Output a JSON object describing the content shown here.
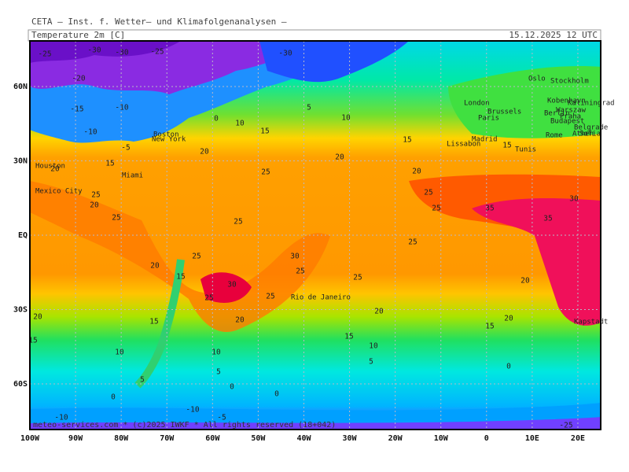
{
  "header": {
    "organisation": "CETA – Inst. f. Wetter– und Klimafolgenanalysen –",
    "field": "Temperature 2m [C]",
    "valid_time": "15.12.2025 12 UTC"
  },
  "footer": "meteo-services.com * (c)2025 IWKF * All rights reserved (18+042)",
  "map": {
    "lon_range": [
      -100,
      25
    ],
    "lat_range": [
      -78.4,
      78.4
    ],
    "lon_ticks": [
      {
        "value": -100,
        "label": "100W"
      },
      {
        "value": -90,
        "label": "90W"
      },
      {
        "value": -80,
        "label": "80W"
      },
      {
        "value": -70,
        "label": "70W"
      },
      {
        "value": -60,
        "label": "60W"
      },
      {
        "value": -50,
        "label": "50W"
      },
      {
        "value": -40,
        "label": "40W"
      },
      {
        "value": -30,
        "label": "30W"
      },
      {
        "value": -20,
        "label": "20W"
      },
      {
        "value": -10,
        "label": "10W"
      },
      {
        "value": 0,
        "label": "0"
      },
      {
        "value": 10,
        "label": "10E"
      },
      {
        "value": 20,
        "label": "20E"
      }
    ],
    "lat_ticks": [
      {
        "value": 60,
        "label": "60N"
      },
      {
        "value": 30,
        "label": "30N"
      },
      {
        "value": 0,
        "label": "EQ"
      },
      {
        "value": -30,
        "label": "30S"
      },
      {
        "value": -60,
        "label": "60S"
      }
    ],
    "cities": [
      "Oslo",
      "Stockholm",
      "London",
      "Kobenhavn",
      "Kaliningrad",
      "Warszaw",
      "Brussels",
      "Berlin",
      "Paris",
      "Praha",
      "Budapest",
      "Belgrade",
      "Rome",
      "Athen",
      "Sofia",
      "Madrid",
      "Lissabon",
      "Tunis",
      "Boston",
      "New York",
      "Houston",
      "Miami",
      "Mexico City",
      "Rio de Janeiro",
      "Kapstadt"
    ],
    "contour_labels": [
      -25,
      -30,
      -30,
      -25,
      -30,
      -20,
      -10,
      -15,
      -10,
      -5,
      0,
      10,
      15,
      5,
      10,
      20,
      20,
      25,
      15,
      15,
      20,
      25,
      25,
      30,
      35,
      35,
      25,
      25,
      25,
      30,
      25,
      25,
      20,
      15,
      30,
      25,
      25,
      20,
      20,
      15,
      15,
      15,
      10,
      10,
      10,
      5,
      5,
      5,
      0,
      0,
      0,
      0,
      -10,
      -5,
      -10,
      -25,
      20,
      15,
      20,
      20,
      20,
      20,
      25,
      25,
      15
    ]
  }
}
